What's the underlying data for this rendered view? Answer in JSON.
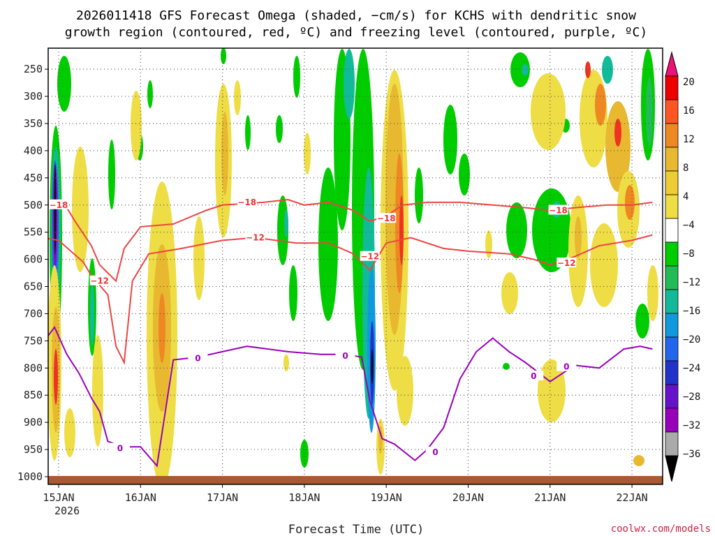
{
  "chart_data": {
    "type": "heatmap",
    "title_line1": "2026011418 GFS Forecast Omega (shaded, −cm/s) for KCHS with dendritic snow",
    "title_line2": "growth region (contoured, red, ºC) and freezing level (contoured, purple, ºC)",
    "xlabel": "Forecast Time (UTC)",
    "year_label": "2026",
    "credit": "coolwx.com/models",
    "y_ticks": [
      "250",
      "300",
      "350",
      "400",
      "450",
      "500",
      "550",
      "600",
      "650",
      "700",
      "750",
      "800",
      "850",
      "900",
      "950",
      "1000"
    ],
    "x_ticks": [
      "15JAN",
      "16JAN",
      "17JAN",
      "18JAN",
      "19JAN",
      "20JAN",
      "21JAN",
      "22JAN"
    ],
    "colorbar_labels": [
      "20",
      "16",
      "12",
      "8",
      "4",
      "−4",
      "−8",
      "−12",
      "−16",
      "−20",
      "−24",
      "−28",
      "−32",
      "−36"
    ],
    "colorbar_colors": [
      "#ee0000",
      "#ff5522",
      "#ee8822",
      "#e8b830",
      "#eecc33",
      "#eedd44",
      "#ffffff",
      "#00cc00",
      "#22bb55",
      "#11bb99",
      "#1199dd",
      "#2266ee",
      "#2233cc",
      "#6611cc",
      "#9900bb",
      "#aaaaaa"
    ],
    "red_contour_labels": {
      "upper": "−18",
      "lower": "−12"
    },
    "purple_contour_label": "0",
    "red_upper_hpa": [
      [
        14.8,
        495
      ],
      [
        15.1,
        505
      ],
      [
        15.2,
        530
      ],
      [
        15.4,
        575
      ],
      [
        15.5,
        610
      ],
      [
        15.7,
        640
      ],
      [
        15.8,
        580
      ],
      [
        16.0,
        540
      ],
      [
        16.4,
        535
      ],
      [
        16.8,
        510
      ],
      [
        17.0,
        500
      ],
      [
        17.5,
        495
      ],
      [
        17.8,
        490
      ],
      [
        18.0,
        500
      ],
      [
        18.3,
        495
      ],
      [
        18.6,
        510
      ],
      [
        18.8,
        530
      ],
      [
        19.0,
        520
      ],
      [
        19.2,
        500
      ],
      [
        19.5,
        495
      ],
      [
        19.9,
        495
      ],
      [
        20.3,
        500
      ],
      [
        20.7,
        505
      ],
      [
        21.0,
        510
      ],
      [
        21.3,
        505
      ],
      [
        21.7,
        500
      ],
      [
        22.0,
        500
      ],
      [
        22.25,
        495
      ]
    ],
    "red_lower_hpa": [
      [
        14.8,
        560
      ],
      [
        15.0,
        565
      ],
      [
        15.3,
        605
      ],
      [
        15.4,
        630
      ],
      [
        15.6,
        665
      ],
      [
        15.7,
        760
      ],
      [
        15.8,
        790
      ],
      [
        15.9,
        640
      ],
      [
        16.1,
        590
      ],
      [
        16.5,
        580
      ],
      [
        17.0,
        565
      ],
      [
        17.4,
        560
      ],
      [
        17.9,
        570
      ],
      [
        18.3,
        570
      ],
      [
        18.6,
        590
      ],
      [
        18.8,
        620
      ],
      [
        19.0,
        570
      ],
      [
        19.3,
        560
      ],
      [
        19.7,
        580
      ],
      [
        20.0,
        585
      ],
      [
        20.5,
        590
      ],
      [
        20.8,
        600
      ],
      [
        21.0,
        610
      ],
      [
        21.3,
        595
      ],
      [
        21.6,
        575
      ],
      [
        22.0,
        565
      ],
      [
        22.25,
        555
      ]
    ],
    "purple_fz_hpa": [
      [
        14.8,
        755
      ],
      [
        14.95,
        725
      ],
      [
        15.1,
        775
      ],
      [
        15.25,
        810
      ],
      [
        15.4,
        855
      ],
      [
        15.5,
        880
      ],
      [
        15.6,
        935
      ],
      [
        15.8,
        945
      ],
      [
        16.0,
        945
      ],
      [
        16.2,
        980
      ],
      [
        16.4,
        785
      ],
      [
        16.7,
        780
      ],
      [
        17.0,
        770
      ],
      [
        17.3,
        760
      ],
      [
        17.8,
        770
      ],
      [
        18.2,
        775
      ],
      [
        18.5,
        775
      ],
      [
        18.7,
        780
      ],
      [
        18.8,
        860
      ],
      [
        18.95,
        930
      ],
      [
        19.1,
        940
      ],
      [
        19.35,
        970
      ],
      [
        19.5,
        950
      ],
      [
        19.7,
        910
      ],
      [
        19.9,
        820
      ],
      [
        20.1,
        770
      ],
      [
        20.3,
        745
      ],
      [
        20.5,
        770
      ],
      [
        20.7,
        790
      ],
      [
        21.0,
        825
      ],
      [
        21.3,
        795
      ],
      [
        21.6,
        800
      ],
      [
        21.9,
        765
      ],
      [
        22.1,
        760
      ],
      [
        22.25,
        765
      ]
    ],
    "y_range_hpa": [
      1000,
      200
    ],
    "x_range_day": [
      14.75,
      22.25
    ],
    "grid": true
  }
}
